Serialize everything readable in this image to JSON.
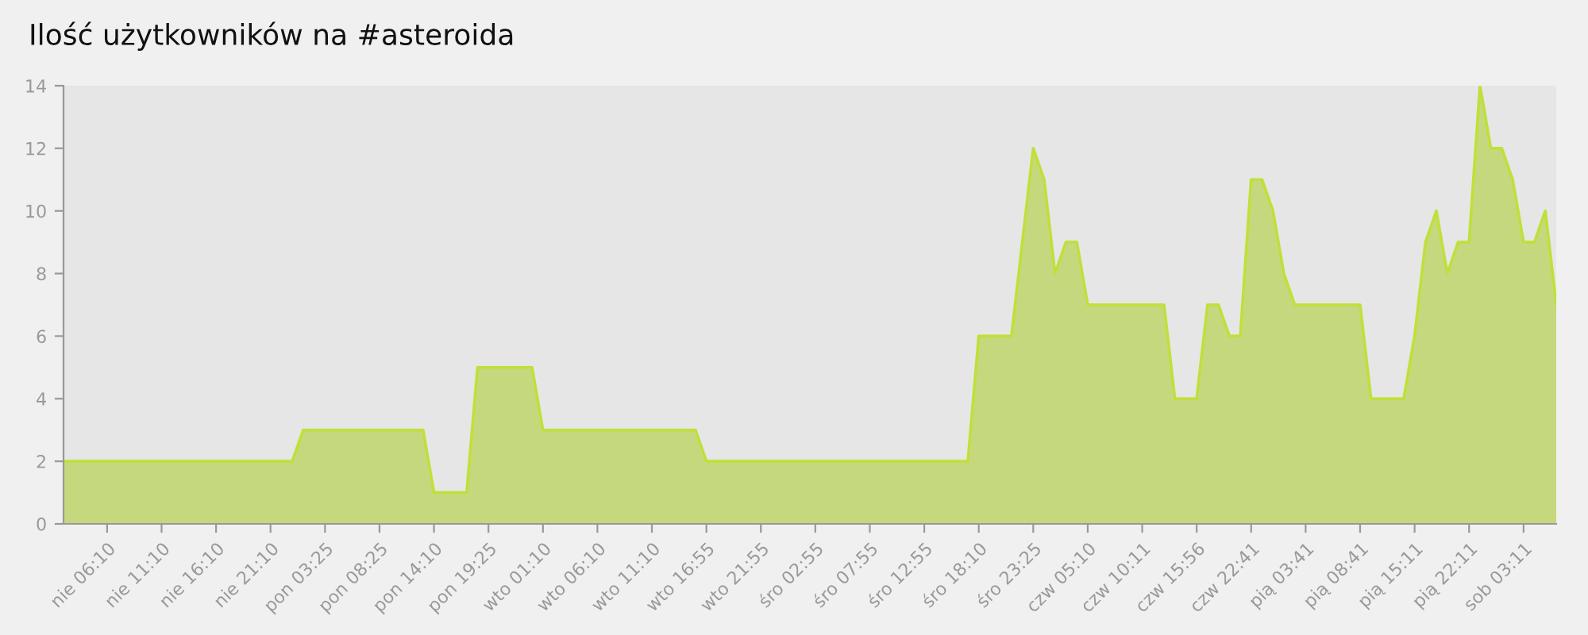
{
  "chart_data": {
    "type": "area",
    "title": "Ilość użytkowników na #asteroida",
    "categories": [
      null,
      null,
      null,
      null,
      "nie 06:10",
      null,
      null,
      null,
      null,
      "nie 11:10",
      null,
      null,
      null,
      null,
      "nie 16:10",
      null,
      null,
      null,
      null,
      "nie 21:10",
      null,
      null,
      null,
      null,
      "pon 03:25",
      null,
      null,
      null,
      null,
      "pon 08:25",
      null,
      null,
      null,
      null,
      "pon 14:10",
      null,
      null,
      null,
      null,
      "pon 19:25",
      null,
      null,
      null,
      null,
      "wto 01:10",
      null,
      null,
      null,
      null,
      "wto 06:10",
      null,
      null,
      null,
      null,
      "wto 11:10",
      null,
      null,
      null,
      null,
      "wto 16:55",
      null,
      null,
      null,
      null,
      "wto 21:55",
      null,
      null,
      null,
      null,
      "śro 02:55",
      null,
      null,
      null,
      null,
      "śro 07:55",
      null,
      null,
      null,
      null,
      "śro 12:55",
      null,
      null,
      null,
      null,
      "śro 18:10",
      null,
      null,
      null,
      null,
      "śro 23:25",
      null,
      null,
      null,
      null,
      "czw 05:10",
      null,
      null,
      null,
      null,
      "czw 10:11",
      null,
      null,
      null,
      null,
      "czw 15:56",
      null,
      null,
      null,
      null,
      "czw 22:41",
      null,
      null,
      null,
      null,
      "pią 03:41",
      null,
      null,
      null,
      null,
      "pią 08:41",
      null,
      null,
      null,
      null,
      "pią 15:11",
      null,
      null,
      null,
      null,
      "pią 22:11",
      null,
      null,
      null,
      null,
      "sob 03:11",
      null,
      null,
      null
    ],
    "series": [
      {
        "color": "#c6d87e",
        "values": [
          2,
          2,
          2,
          2,
          2,
          2,
          2,
          2,
          2,
          2,
          2,
          2,
          2,
          2,
          2,
          2,
          2,
          2,
          2,
          2,
          2,
          2,
          3,
          3,
          3,
          3,
          3,
          3,
          3,
          3,
          3,
          3,
          3,
          3,
          1,
          1,
          1,
          1,
          5,
          5,
          5,
          5,
          5,
          5,
          3,
          3,
          3,
          3,
          3,
          3,
          3,
          3,
          3,
          3,
          3,
          3,
          3,
          3,
          3,
          2,
          2,
          2,
          2,
          2,
          2,
          2,
          2,
          2,
          2,
          2,
          2,
          2,
          2,
          2,
          2,
          2,
          2,
          2,
          2,
          2,
          2,
          2,
          2,
          2,
          6,
          6,
          6,
          6,
          9,
          12,
          11,
          8,
          9,
          9,
          7,
          7,
          7,
          7,
          7,
          7,
          7,
          7,
          4,
          4,
          4,
          7,
          7,
          6,
          6,
          11,
          11,
          10,
          8,
          7,
          7,
          7,
          7,
          7,
          7,
          7,
          4,
          4,
          4,
          4,
          6,
          9,
          10,
          8,
          9,
          9,
          14,
          12,
          12,
          11,
          9,
          9,
          10,
          7
        ]
      }
    ],
    "ylim": [
      0,
      14
    ],
    "yticks": [
      0,
      2,
      4,
      6,
      8,
      10,
      12,
      14
    ],
    "grid": false,
    "legend": false
  }
}
